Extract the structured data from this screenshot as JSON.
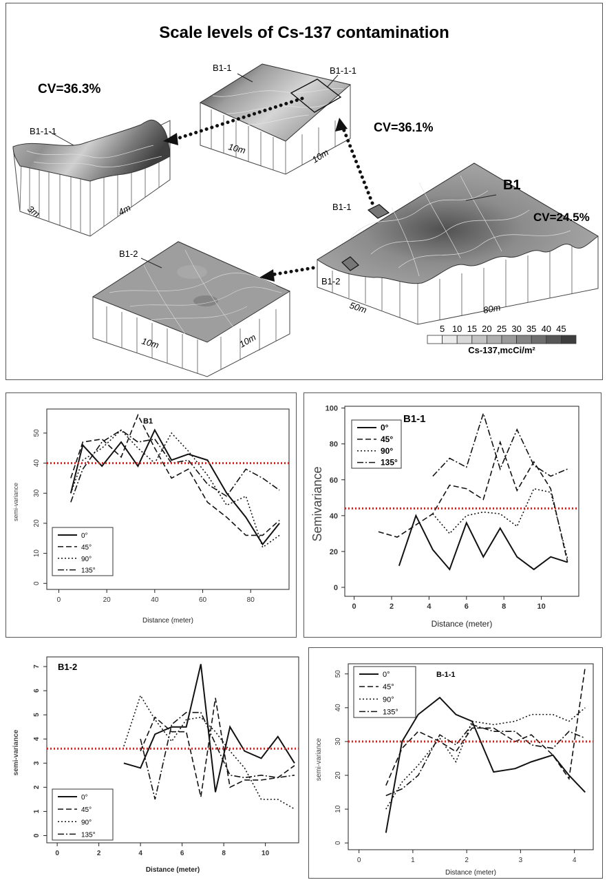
{
  "figure": {
    "title": "Scale levels of Cs-137 contamination",
    "labels": {
      "b1": "B1",
      "b1_1": "B1-1",
      "b1_1_1": "B1-1-1",
      "b1_2": "B1-2",
      "inset_b1_1": "B1-1",
      "inset_b1_2": "B1-2",
      "inset_b1_1_1": "B1-1-1"
    },
    "cv": {
      "b1_1_1": "CV=36.3%",
      "b1_1": "CV=36.1%",
      "b1": "CV=24.5%"
    },
    "dimensions": {
      "b1_1_1_a": "3m",
      "b1_1_1_b": "4m",
      "b1_1_a": "10m",
      "b1_1_b": "10m",
      "b1_a": "50m",
      "b1_b": "80m",
      "b1_2_a": "10m",
      "b1_2_b": "10m"
    },
    "colorbar": {
      "label": "Cs-137,mcCi/m²",
      "ticks": [
        "5",
        "10",
        "15",
        "20",
        "25",
        "30",
        "35",
        "40",
        "45"
      ],
      "colors": [
        "#ffffff",
        "#ececec",
        "#d8d8d8",
        "#c4c4c4",
        "#afafaf",
        "#9a9a9a",
        "#858585",
        "#6e6e6e",
        "#575757",
        "#3d3d3d"
      ]
    }
  },
  "chart_data": [
    {
      "type": "line",
      "title": "B1",
      "xlabel": "Distance (meter)",
      "ylabel": "semi-variance",
      "xlim": [
        -5,
        96
      ],
      "ylim": [
        -2,
        58
      ],
      "xticks": [
        0,
        20,
        40,
        60,
        80
      ],
      "yticks": [
        0,
        10,
        20,
        30,
        40,
        50
      ],
      "reference_line": 40,
      "series": [
        {
          "name": "0°",
          "dash": "solid",
          "x": [
            5,
            10,
            18,
            26,
            33,
            40,
            47,
            54,
            62,
            70,
            78,
            85,
            92
          ],
          "y": [
            30,
            46,
            39,
            47,
            39,
            51,
            41,
            43,
            41,
            30,
            22,
            13,
            20
          ]
        },
        {
          "name": "45°",
          "dash": "dashed",
          "x": [
            5,
            10,
            18,
            26,
            33,
            40,
            47,
            54,
            62,
            70,
            78,
            85,
            92
          ],
          "y": [
            35,
            47,
            48,
            42,
            56,
            45,
            35,
            38,
            27,
            22,
            16,
            16,
            21
          ]
        },
        {
          "name": "90°",
          "dash": "dotted",
          "x": [
            5,
            10,
            18,
            26,
            33,
            40,
            47,
            54,
            62,
            70,
            78,
            85,
            92
          ],
          "y": [
            30,
            41,
            45,
            51,
            45,
            40,
            50,
            44,
            36,
            26,
            29,
            12,
            16
          ]
        },
        {
          "name": "135°",
          "dash": "dashdot",
          "x": [
            5,
            10,
            18,
            26,
            33,
            40,
            47,
            54,
            62,
            70,
            78,
            85,
            92
          ],
          "y": [
            27,
            38,
            47,
            51,
            47,
            48,
            40,
            41,
            33,
            29,
            38,
            35,
            31
          ]
        }
      ]
    },
    {
      "type": "line",
      "title": "B1-1",
      "xlabel": "Distance (meter)",
      "ylabel": "Semivariance",
      "xlim": [
        -0.5,
        12
      ],
      "ylim": [
        -5,
        101
      ],
      "xticks": [
        0,
        2,
        4,
        6,
        8,
        10
      ],
      "yticks": [
        0,
        20,
        40,
        60,
        80,
        100
      ],
      "reference_line": 44,
      "series": [
        {
          "name": "0°",
          "dash": "solid",
          "x": [
            2.4,
            3.3,
            4.2,
            5.1,
            6.0,
            6.9,
            7.8,
            8.7,
            9.6,
            10.5,
            11.4
          ],
          "y": [
            12,
            40,
            21,
            10,
            36,
            17,
            33,
            17,
            10,
            17,
            14
          ]
        },
        {
          "name": "45°",
          "dash": "dashed",
          "x": [
            1.3,
            2.3,
            4.2,
            5.1,
            6.0,
            6.9,
            7.8,
            8.7,
            9.6,
            10.5,
            11.4
          ],
          "y": [
            31,
            28,
            41,
            57,
            55,
            49,
            81,
            54,
            70,
            55,
            14
          ]
        },
        {
          "name": "90°",
          "dash": "dotted",
          "x": [
            4.2,
            5.1,
            6.0,
            6.9,
            7.8,
            8.7,
            9.6,
            10.5,
            11.4
          ],
          "y": [
            41,
            30,
            40,
            42,
            41,
            34,
            55,
            53,
            16
          ]
        },
        {
          "name": "135°",
          "dash": "dashdot",
          "x": [
            4.2,
            5.1,
            6.0,
            6.9,
            7.8,
            8.7,
            9.6,
            10.5,
            11.4
          ],
          "y": [
            62,
            72,
            67,
            97,
            66,
            88,
            68,
            62,
            66
          ]
        }
      ]
    },
    {
      "type": "line",
      "title": "B1-2",
      "xlabel": "Distance (meter)",
      "ylabel": "semi-variance",
      "xlim": [
        -0.5,
        11.6
      ],
      "ylim": [
        -0.3,
        7.4
      ],
      "xticks": [
        0,
        2,
        4,
        6,
        8,
        10
      ],
      "yticks": [
        0,
        1,
        2,
        3,
        4,
        5,
        6,
        7
      ],
      "reference_line": 3.6,
      "series": [
        {
          "name": "0°",
          "dash": "solid",
          "x": [
            3.2,
            4.0,
            4.7,
            5.5,
            6.2,
            6.9,
            7.6,
            8.3,
            9.0,
            9.8,
            10.6,
            11.4
          ],
          "y": [
            3.0,
            2.8,
            4.2,
            4.5,
            4.5,
            7.1,
            1.8,
            4.5,
            3.5,
            3.2,
            4.1,
            3.0
          ]
        },
        {
          "name": "45°",
          "dash": "dashed",
          "x": [
            4.0,
            4.7,
            5.5,
            6.2,
            6.9,
            7.6,
            8.3,
            9.0,
            9.8,
            10.6,
            11.4
          ],
          "y": [
            3.5,
            4.9,
            4.3,
            4.3,
            1.6,
            5.7,
            2.0,
            2.3,
            2.3,
            2.4,
            2.9
          ]
        },
        {
          "name": "90°",
          "dash": "dotted",
          "x": [
            3.2,
            4.0,
            4.7,
            5.5,
            6.2,
            6.9,
            7.6,
            8.3,
            9.0,
            9.8,
            10.6,
            11.4
          ],
          "y": [
            3.7,
            5.8,
            4.8,
            3.9,
            4.8,
            4.9,
            4.3,
            3.5,
            2.8,
            1.5,
            1.5,
            1.1
          ]
        },
        {
          "name": "135°",
          "dash": "dashdot",
          "x": [
            4.0,
            4.7,
            5.5,
            6.2,
            6.9,
            7.6,
            8.3,
            9.0,
            9.8,
            10.6,
            11.4
          ],
          "y": [
            4.0,
            1.5,
            4.6,
            5.1,
            5.1,
            3.8,
            2.5,
            2.4,
            2.5,
            2.4,
            2.5
          ]
        }
      ]
    },
    {
      "type": "line",
      "title": "B-1-1",
      "xlabel": "Distance (meter)",
      "ylabel": "semi-variance",
      "xlim": [
        -0.2,
        4.35
      ],
      "ylim": [
        -2,
        53
      ],
      "xticks": [
        0,
        1,
        2,
        3,
        4
      ],
      "yticks": [
        0,
        10,
        20,
        30,
        40,
        50
      ],
      "reference_line": 30,
      "series": [
        {
          "name": "0°",
          "dash": "solid",
          "x": [
            0.5,
            0.8,
            1.1,
            1.5,
            1.8,
            2.1,
            2.5,
            2.9,
            3.2,
            3.6,
            3.9,
            4.2
          ],
          "y": [
            3,
            30,
            38,
            43,
            38,
            36,
            21,
            22,
            24,
            26,
            20,
            15
          ]
        },
        {
          "name": "45°",
          "dash": "dashed",
          "x": [
            0.5,
            0.8,
            1.1,
            1.5,
            1.8,
            2.1,
            2.5,
            2.9,
            3.2,
            3.6,
            3.9,
            4.2
          ],
          "y": [
            17,
            28,
            33,
            30,
            27,
            34,
            34,
            30,
            32,
            26,
            19,
            52
          ]
        },
        {
          "name": "90°",
          "dash": "dotted",
          "x": [
            0.5,
            0.8,
            1.1,
            1.5,
            1.8,
            2.1,
            2.5,
            2.9,
            3.2,
            3.6,
            3.9,
            4.2
          ],
          "y": [
            10,
            18,
            23,
            31,
            24,
            36,
            35,
            36,
            38,
            38,
            36,
            40
          ]
        },
        {
          "name": "135°",
          "dash": "dashdot",
          "x": [
            0.5,
            0.8,
            1.1,
            1.5,
            1.8,
            2.1,
            2.5,
            2.9,
            3.2,
            3.6,
            3.9,
            4.2
          ],
          "y": [
            14,
            16,
            20,
            32,
            29,
            35,
            33,
            33,
            29,
            28,
            33,
            31
          ]
        }
      ]
    }
  ]
}
